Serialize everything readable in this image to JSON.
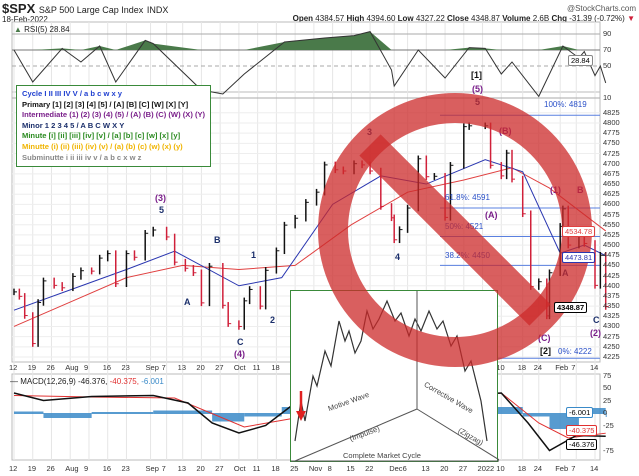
{
  "header": {
    "symbol": "$SPX",
    "name": "S&P 500 Large Cap Index",
    "exchange": "INDX",
    "date": "18-Feb-2022",
    "brand": "@StockCharts.com",
    "open_label": "Open",
    "open": "4384.57",
    "high_label": "High",
    "high": "4394.60",
    "low_label": "Low",
    "low": "4327.22",
    "close_label": "Close",
    "close": "4348.87",
    "volume_label": "Volume",
    "volume": "2.6B",
    "chg_label": "Chg",
    "chg": "-31.39 (-0.72%)"
  },
  "rsi": {
    "label": "RSI(5) 28.84",
    "value_tag": "28.84",
    "ticks": [
      "90",
      "70",
      "50",
      "10"
    ]
  },
  "macd": {
    "label_main": "MACD(12,26,9) -46.376,",
    "label_signal": " -40.375,",
    "label_hist": " -6.001",
    "ticks": [
      "75",
      "50",
      "25",
      "0",
      "-25",
      "-75"
    ],
    "tag_hist": "-6.001",
    "tag_signal": "-40.375",
    "tag_macd": "-46.376"
  },
  "legend": [
    {
      "text": "Cycle I II III IV V / a b c w x y",
      "color": "#1f3fd0"
    },
    {
      "text": "Primary [1] [2] [3] [4] [5] / [A] [B] [C] [W] [X] [Y]",
      "color": "#111111"
    },
    {
      "text": "Intermediate (1) (2) (3) (4) (5) / (A) (B) (C) (W) (X) (Y)",
      "color": "#7a1f8a"
    },
    {
      "text": "Minor 1 2 3 4 5 / A B C W X Y",
      "color": "#1b2f6b"
    },
    {
      "text": "Minute [i] [ii] [iii] [iv] [v] / [a] [b] [c] [w] [x] [y]",
      "color": "#2a8a1f"
    },
    {
      "text": "Minutte (i) (ii) (iii) (iv) (v) / (a) (b) (c) (w) (x) (y)",
      "color": "#f0b400"
    },
    {
      "text": "Subminutte i ii iii iv v / a b c x w z",
      "color": "#888888"
    }
  ],
  "fib": [
    {
      "text": "100%: 4819",
      "level": 4819
    },
    {
      "text": "61.8%: 4591",
      "level": 4591
    },
    {
      "text": "50%: 4521",
      "level": 4521
    },
    {
      "text": "38.2%: 4450",
      "level": 4450
    },
    {
      "text": "0%: 4222",
      "level": 4222
    }
  ],
  "price_tags": {
    "ma50": "4534.78",
    "ma20": "4473.81",
    "close": "4348.87"
  },
  "wave_labels": [
    "(3)",
    "5",
    "A",
    "B",
    "C",
    "(4)",
    "1",
    "2",
    "3",
    "4",
    "[1]",
    "(5)",
    "5",
    "(A)",
    "(B)",
    "(C)",
    "[2]",
    "(1)",
    "B",
    "A",
    "C",
    "(2)"
  ],
  "inset": {
    "motive": "Motive Wave",
    "impulse": "(Impulse)",
    "corrective": "Corrective Wave",
    "zigzag": "(Zigzag)",
    "cycle": "Complete Market Cycle"
  },
  "colors": {
    "up": "#111111",
    "down": "#d0203a",
    "ma50": "#e04040",
    "ma20": "#2a36b0",
    "fib": "#5a80e0",
    "rsi_fill": "#4a7a4a",
    "macd_hist": "#3a8ac8",
    "no_sign": "#cc2a2a",
    "legend_border": "#3a8a3a"
  },
  "icons": {
    "no_sign": "prohibition-sign",
    "arrow": "red-down-arrow"
  },
  "chart_data": {
    "type": "ohlc",
    "title": "$SPX S&P 500 Large Cap Index INDX",
    "ylim": [
      4215,
      4840
    ],
    "yticks": [
      4225,
      4250,
      4275,
      4300,
      4325,
      4350,
      4375,
      4400,
      4425,
      4450,
      4475,
      4500,
      4525,
      4550,
      4575,
      4600,
      4625,
      4650,
      4675,
      4700,
      4725,
      4750,
      4775,
      4800,
      4825
    ],
    "xticks": [
      {
        "d": "2021-07-12",
        "t": "12"
      },
      {
        "d": "2021-07-19",
        "t": "19"
      },
      {
        "d": "2021-07-26",
        "t": "26"
      },
      {
        "d": "2021-08-02",
        "t": "Aug"
      },
      {
        "d": "2021-08-09",
        "t": "9"
      },
      {
        "d": "2021-08-16",
        "t": "16"
      },
      {
        "d": "2021-08-23",
        "t": "23"
      },
      {
        "d": "2021-09-01",
        "t": "Sep"
      },
      {
        "d": "2021-09-07",
        "t": "7"
      },
      {
        "d": "2021-09-13",
        "t": "13"
      },
      {
        "d": "2021-09-20",
        "t": "20"
      },
      {
        "d": "2021-09-27",
        "t": "27"
      },
      {
        "d": "2021-10-04",
        "t": "Oct"
      },
      {
        "d": "2021-10-11",
        "t": "11"
      },
      {
        "d": "2021-10-18",
        "t": "18"
      },
      {
        "d": "2021-10-25",
        "t": "25"
      },
      {
        "d": "2021-11-01",
        "t": "Nov"
      },
      {
        "d": "2021-11-08",
        "t": "8"
      },
      {
        "d": "2021-11-15",
        "t": "15"
      },
      {
        "d": "2021-11-22",
        "t": "22"
      },
      {
        "d": "2021-12-01",
        "t": "Dec"
      },
      {
        "d": "2021-12-06",
        "t": "6"
      },
      {
        "d": "2021-12-13",
        "t": "13"
      },
      {
        "d": "2021-12-20",
        "t": "20"
      },
      {
        "d": "2021-12-27",
        "t": "27"
      },
      {
        "d": "2022-01-03",
        "t": "2022"
      },
      {
        "d": "2022-01-10",
        "t": "10"
      },
      {
        "d": "2022-01-18",
        "t": "18"
      },
      {
        "d": "2022-01-24",
        "t": "24"
      },
      {
        "d": "2022-02-01",
        "t": "Feb"
      },
      {
        "d": "2022-02-07",
        "t": "7"
      },
      {
        "d": "2022-02-14",
        "t": "14"
      }
    ],
    "close": [
      [
        "2021-07-12",
        4385
      ],
      [
        "2021-07-14",
        4374
      ],
      [
        "2021-07-16",
        4327
      ],
      [
        "2021-07-19",
        4258
      ],
      [
        "2021-07-21",
        4359
      ],
      [
        "2021-07-23",
        4412
      ],
      [
        "2021-07-27",
        4401
      ],
      [
        "2021-07-30",
        4395
      ],
      [
        "2021-08-03",
        4423
      ],
      [
        "2021-08-06",
        4437
      ],
      [
        "2021-08-10",
        4436
      ],
      [
        "2021-08-13",
        4468
      ],
      [
        "2021-08-16",
        4479
      ],
      [
        "2021-08-19",
        4405
      ],
      [
        "2021-08-23",
        4479
      ],
      [
        "2021-08-26",
        4470
      ],
      [
        "2021-08-30",
        4529
      ],
      [
        "2021-09-02",
        4537
      ],
      [
        "2021-09-07",
        4520
      ],
      [
        "2021-09-10",
        4458
      ],
      [
        "2021-09-14",
        4443
      ],
      [
        "2021-09-17",
        4432
      ],
      [
        "2021-09-20",
        4358
      ],
      [
        "2021-09-23",
        4448
      ],
      [
        "2021-09-28",
        4352
      ],
      [
        "2021-09-30",
        4307
      ],
      [
        "2021-10-04",
        4300
      ],
      [
        "2021-10-06",
        4363
      ],
      [
        "2021-10-08",
        4391
      ],
      [
        "2021-10-12",
        4350
      ],
      [
        "2021-10-14",
        4438
      ],
      [
        "2021-10-18",
        4486
      ],
      [
        "2021-10-21",
        4549
      ],
      [
        "2021-10-25",
        4566
      ],
      [
        "2021-10-29",
        4605
      ],
      [
        "2021-11-02",
        4630
      ],
      [
        "2021-11-05",
        4697
      ],
      [
        "2021-11-09",
        4685
      ],
      [
        "2021-11-12",
        4682
      ],
      [
        "2021-11-16",
        4700
      ],
      [
        "2021-11-19",
        4697
      ],
      [
        "2021-11-22",
        4682
      ],
      [
        "2021-11-26",
        4595
      ],
      [
        "2021-11-30",
        4567
      ],
      [
        "2021-12-01",
        4513
      ],
      [
        "2021-12-03",
        4538
      ],
      [
        "2021-12-06",
        4591
      ],
      [
        "2021-12-10",
        4712
      ],
      [
        "2021-12-13",
        4668
      ],
      [
        "2021-12-16",
        4669
      ],
      [
        "2021-12-20",
        4568
      ],
      [
        "2021-12-22",
        4696
      ],
      [
        "2021-12-27",
        4791
      ],
      [
        "2021-12-29",
        4793
      ],
      [
        "2022-01-04",
        4793
      ],
      [
        "2022-01-06",
        4696
      ],
      [
        "2022-01-10",
        4670
      ],
      [
        "2022-01-12",
        4726
      ],
      [
        "2022-01-14",
        4662
      ],
      [
        "2022-01-18",
        4577
      ],
      [
        "2022-01-21",
        4398
      ],
      [
        "2022-01-24",
        4410
      ],
      [
        "2022-01-27",
        4326
      ],
      [
        "2022-01-28",
        4432
      ],
      [
        "2022-02-01",
        4546
      ],
      [
        "2022-02-02",
        4589
      ],
      [
        "2022-02-04",
        4500
      ],
      [
        "2022-02-08",
        4521
      ],
      [
        "2022-02-10",
        4504
      ],
      [
        "2022-02-14",
        4401
      ],
      [
        "2022-02-16",
        4475
      ],
      [
        "2022-02-18",
        4349
      ]
    ],
    "ma50": [
      [
        "2021-07-12",
        4300
      ],
      [
        "2021-08-02",
        4360
      ],
      [
        "2021-08-23",
        4420
      ],
      [
        "2021-09-13",
        4450
      ],
      [
        "2021-10-04",
        4440
      ],
      [
        "2021-10-25",
        4450
      ],
      [
        "2021-11-15",
        4550
      ],
      [
        "2021-12-06",
        4630
      ],
      [
        "2021-12-27",
        4660
      ],
      [
        "2022-01-14",
        4690
      ],
      [
        "2022-01-28",
        4640
      ],
      [
        "2022-02-18",
        4534.78
      ]
    ],
    "ma20": [
      [
        "2021-07-12",
        4340
      ],
      [
        "2021-08-02",
        4390
      ],
      [
        "2021-08-23",
        4440
      ],
      [
        "2021-09-10",
        4485
      ],
      [
        "2021-10-04",
        4400
      ],
      [
        "2021-10-20",
        4420
      ],
      [
        "2021-11-08",
        4600
      ],
      [
        "2021-11-26",
        4670
      ],
      [
        "2021-12-13",
        4650
      ],
      [
        "2022-01-04",
        4710
      ],
      [
        "2022-01-18",
        4680
      ],
      [
        "2022-02-01",
        4480
      ],
      [
        "2022-02-10",
        4500
      ],
      [
        "2022-02-18",
        4473.81
      ]
    ],
    "rsi": [
      [
        "2021-07-12",
        70
      ],
      [
        "2021-07-19",
        30
      ],
      [
        "2021-07-30",
        72
      ],
      [
        "2021-08-06",
        55
      ],
      [
        "2021-08-13",
        75
      ],
      [
        "2021-08-19",
        30
      ],
      [
        "2021-08-30",
        82
      ],
      [
        "2021-09-02",
        78
      ],
      [
        "2021-09-20",
        20
      ],
      [
        "2021-09-28",
        15
      ],
      [
        "2021-10-06",
        40
      ],
      [
        "2021-10-21",
        80
      ],
      [
        "2021-11-05",
        85
      ],
      [
        "2021-11-16",
        88
      ],
      [
        "2021-11-22",
        93
      ],
      [
        "2021-11-30",
        45
      ],
      [
        "2021-12-01",
        25
      ],
      [
        "2021-12-10",
        70
      ],
      [
        "2021-12-20",
        35
      ],
      [
        "2021-12-29",
        73
      ],
      [
        "2022-01-04",
        72
      ],
      [
        "2022-01-10",
        40
      ],
      [
        "2022-01-14",
        55
      ],
      [
        "2022-01-24",
        12
      ],
      [
        "2022-02-02",
        75
      ],
      [
        "2022-02-08",
        60
      ],
      [
        "2022-02-10",
        68
      ],
      [
        "2022-02-14",
        38
      ],
      [
        "2022-02-16",
        50
      ],
      [
        "2022-02-18",
        28.84
      ]
    ],
    "macd_line": [
      [
        "2021-07-12",
        40
      ],
      [
        "2021-07-23",
        25
      ],
      [
        "2021-08-10",
        33
      ],
      [
        "2021-09-02",
        35
      ],
      [
        "2021-09-15",
        20
      ],
      [
        "2021-09-24",
        -20
      ],
      [
        "2021-10-04",
        -40
      ],
      [
        "2021-10-14",
        -25
      ],
      [
        "2021-10-25",
        20
      ],
      [
        "2022-01-10",
        40
      ],
      [
        "2022-01-20",
        -20
      ],
      [
        "2022-01-28",
        -75
      ],
      [
        "2022-02-07",
        -45
      ],
      [
        "2022-02-18",
        -46.376
      ]
    ],
    "macd_signal": [
      [
        "2021-07-12",
        35
      ],
      [
        "2021-08-10",
        32
      ],
      [
        "2021-09-10",
        30
      ],
      [
        "2021-10-06",
        -28
      ],
      [
        "2021-10-25",
        -10
      ],
      [
        "2022-01-10",
        40
      ],
      [
        "2022-01-24",
        -20
      ],
      [
        "2022-02-04",
        -50
      ],
      [
        "2022-02-18",
        -40.375
      ]
    ],
    "macd_hist": [
      [
        "2021-07-12",
        3
      ],
      [
        "2021-07-23",
        -8
      ],
      [
        "2021-08-10",
        2
      ],
      [
        "2021-09-02",
        5
      ],
      [
        "2021-09-24",
        -15
      ],
      [
        "2021-10-06",
        -5
      ],
      [
        "2021-10-20",
        12
      ],
      [
        "2022-01-18",
        -5
      ],
      [
        "2022-01-28",
        -30
      ],
      [
        "2022-02-08",
        10
      ],
      [
        "2022-02-18",
        -6.001
      ]
    ]
  }
}
